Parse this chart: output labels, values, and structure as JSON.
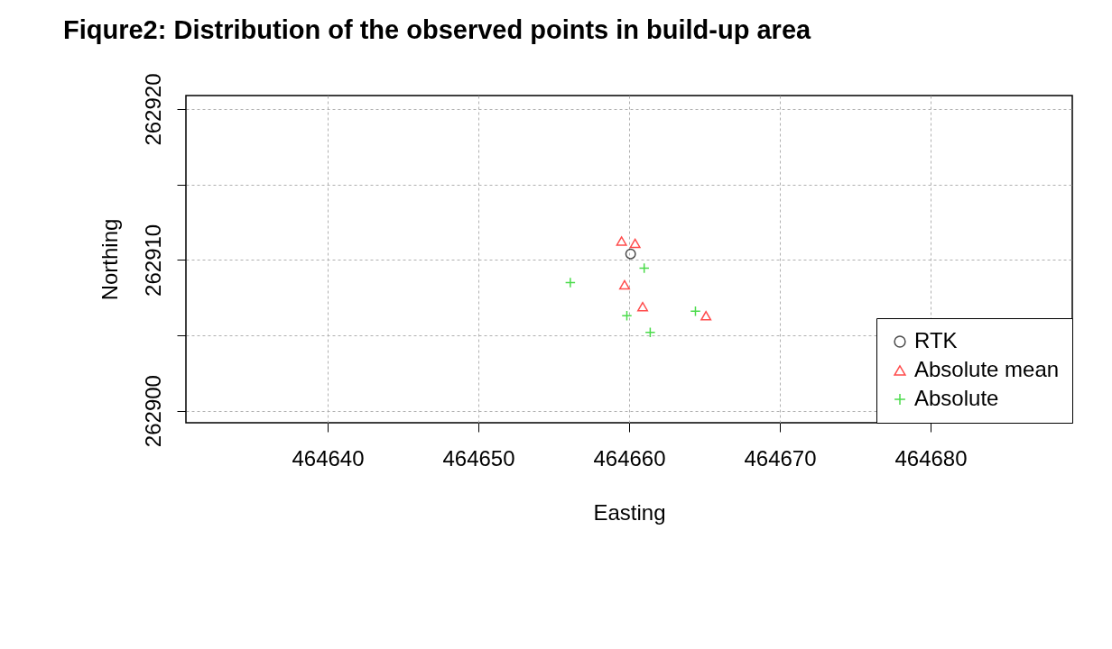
{
  "chart_data": {
    "type": "scatter",
    "title": "Fiqure2: Distribution of the observed points in build-up area",
    "xlabel": "Easting",
    "ylabel": "Northing",
    "xlim": [
      464630.6,
      464689.4
    ],
    "xticks": [
      464640,
      464650,
      464660,
      464670,
      464680
    ],
    "ylim": [
      262899.2,
      262920.9
    ],
    "yticks": [
      262900,
      {
        "value": 262905,
        "label": null
      },
      262910,
      {
        "value": 262915,
        "label": null
      },
      262920
    ],
    "grid": true,
    "legend": "bottom right",
    "series": [
      {
        "name": "RTK",
        "color": "#000000",
        "marker": "circle",
        "x": [
          464660.1
        ],
        "values": [
          262910.4
        ]
      },
      {
        "name": "Absolute mean",
        "color": "#ff0000",
        "marker": "triangle",
        "x": [
          464659.5,
          464660.4,
          464659.7,
          464660.9,
          464665.1
        ],
        "values": [
          262911.25,
          262911.1,
          262908.35,
          262906.9,
          262906.3
        ]
      },
      {
        "name": "Absolute",
        "color": "#00cd00",
        "marker": "cross",
        "x": [
          464656.1,
          464661.0,
          464659.85,
          464661.4,
          464664.4
        ],
        "values": [
          262908.5,
          262909.45,
          262906.3,
          262905.2,
          262906.6
        ]
      }
    ]
  }
}
